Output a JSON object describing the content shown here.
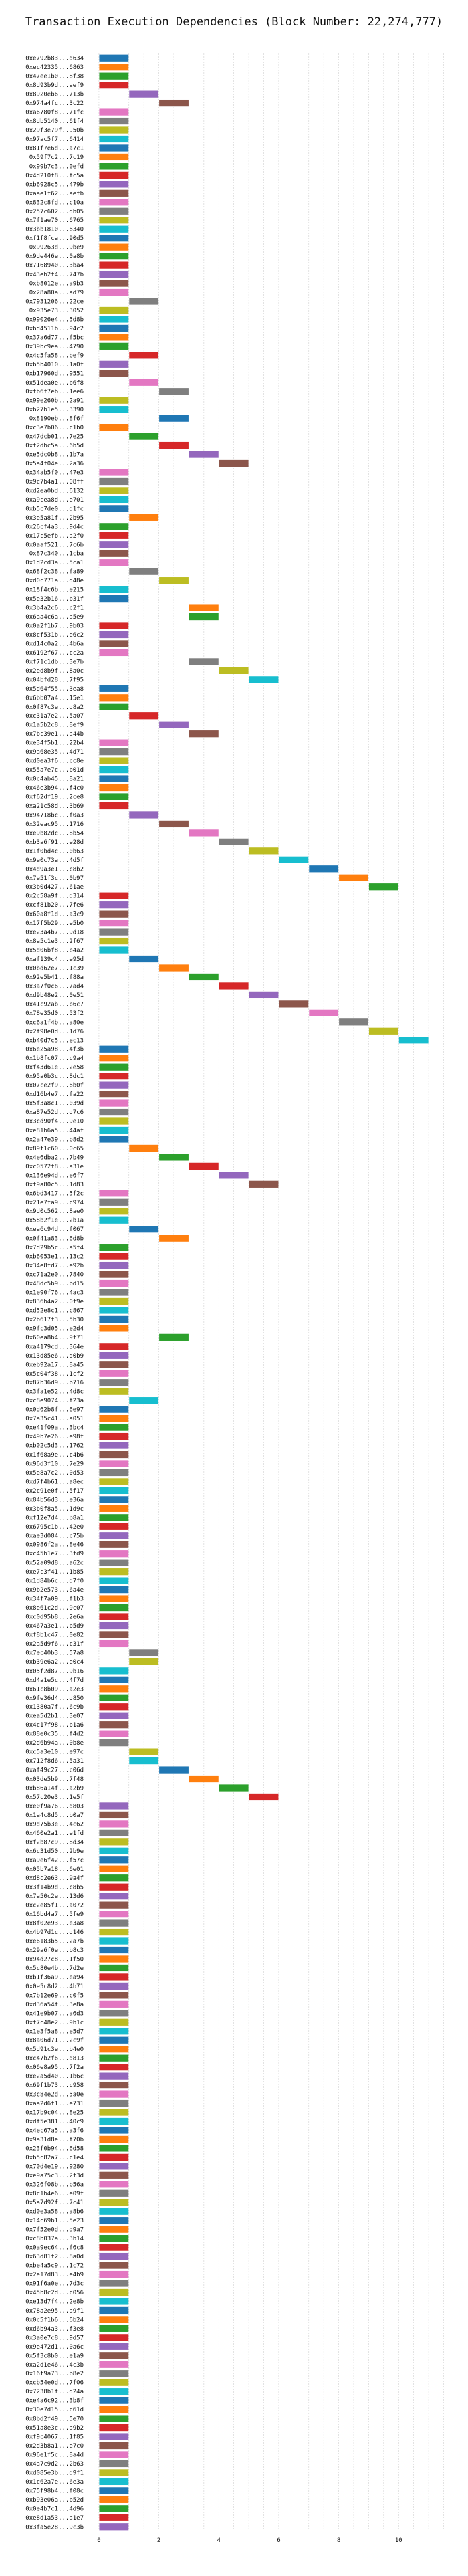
{
  "chart_data": {
    "type": "bar",
    "orientation": "horizontal",
    "title": "Transaction Execution Dependencies (Block Number: 22,274,777)",
    "xlabel": "",
    "ylabel": "",
    "xlim": [
      -0.4,
      11.6
    ],
    "xticks": [
      "0",
      "2",
      "4",
      "6",
      "8",
      "10"
    ],
    "xtick_values": [
      0,
      2,
      4,
      6,
      8,
      10
    ],
    "grid": true,
    "colors": [
      "#1f77b4",
      "#ff7f0e",
      "#2ca02c",
      "#d62728",
      "#9467bd",
      "#8c564b",
      "#e377c2",
      "#7f7f7f",
      "#bcbd22",
      "#17becf"
    ],
    "categories": [
      "0xe792b83...d634",
      "0xec42335...6863",
      "0x47ee1b0...8f38",
      "0x8d93b9d...aef9",
      "0x8920eb6...713b",
      "0x974a4fc...3c22",
      "0xa6780f8...71fc",
      "0x8db5140...61f4",
      "0x29f3e79f...50b",
      "0x97ac5f7...6414",
      "0x81f7e6d...a7c1",
      "0x59f7c2...7c19",
      "0x99b7c3...0efd",
      "0x4d210f8...fc5a",
      "0xb6928c5...479b",
      "0xaae1f62...aefb",
      "0x832c8fd...c10a",
      "0x257c602...db05",
      "0x7f1ae70...6765",
      "0x3bb1810...6340",
      "0xf1f8fca...90d5",
      "0x99263d...9be9",
      "0x9de446e...0a8b",
      "0x7168940...3ba4",
      "0x43eb2f4...747b",
      "0xb8012e...a9b3",
      "0x28a80a...ad79",
      "0x7931206...22ce",
      "0x935e73...3052",
      "0x99026e4...5d8b",
      "0xbd4511b...94c2",
      "0x37a6d77...f5bc",
      "0x39bc9ea...4790",
      "0x4c5fa58...bef9",
      "0xb5b4010...1a0f",
      "0xb17960d...9551",
      "0x51dea0e...b6f8",
      "0xfb6f7eb...1ee6",
      "0x99e260b...2a91",
      "0xb27b1e5...3390",
      "0x8190eb...8f6f",
      "0xc3e7b06...c1b0",
      "0x47dcb01...7e25",
      "0xf2dbc5a...6b5d",
      "0xe5dc0b8...1b7a",
      "0x5a4f04e...2a36",
      "0x34ab5f0...47e3",
      "0x9c7b4a1...08ff",
      "0xd2ea0bd...6132",
      "0xa9cea8d...e701",
      "0xb5c7de0...d1fc",
      "0x3e5a81f...2b95",
      "0x26cf4a3...9d4c",
      "0x17c5efb...a2f0",
      "0x0aaf521...7c6b",
      "0x87c340...1cba",
      "0x1d2cd3a...5ca1",
      "0x68f2c38...fa89",
      "0xd0c771a...d48e",
      "0x18f4c6b...e215",
      "0x5e32b16...b31f",
      "0x3b4a2c6...c2f1",
      "0x6aa4c6a...a5e9",
      "0x0a2f1b7...9b03",
      "0x8cf531b...e6c2",
      "0xd14c0a2...4b6a",
      "0x6192f67...cc2a",
      "0xf71c1db...3e7b",
      "0x2ed8b9f...8a0c",
      "0x04bfd28...7f95",
      "0x5d64f55...3ea8",
      "0x6bb07a4...15e1",
      "0x0f87c3e...d8a2",
      "0xc31a7e2...5a07",
      "0x1a5b2c8...8ef9",
      "0x7bc39e1...a44b",
      "0xe34f5b1...22b4",
      "0x9a68e35...4d71",
      "0xd0ea3f6...cc8e",
      "0x55a7e7c...b01d",
      "0x0c4ab45...8a21",
      "0x46e3b94...f4c0",
      "0xf62df19...2ce8",
      "0xa21c58d...3b69",
      "0x94718bc...f0a3",
      "0x32eac95...1716",
      "0xe9b82dc...8b54",
      "0xb3a6f91...e28d",
      "0x1f0bd4c...0b63",
      "0x9e0c73a...4d5f",
      "0x4d9a3e1...c8b2",
      "0x7e51f3c...0b97",
      "0x3b0d427...61ae",
      "0x2c58a9f...d314",
      "0xcf81b20...7fe6",
      "0x60a8f1d...a3c9",
      "0x17f5b29...e5b0",
      "0xe23a4b7...9d18",
      "0x8a5c1e3...2f67",
      "0x5d06bf8...b4a2",
      "0xaf139c4...e95d",
      "0x0bd62e7...1c39",
      "0x92e5b41...f88a",
      "0x3a7f0c6...7ad4",
      "0xd9b48e2...0e51",
      "0x41c92ab...b6c7",
      "0x78e35d0...53f2",
      "0xc6a1f4b...a80e",
      "0x2f98e0d...1d76",
      "0xb40d7c5...ec13",
      "0x6e25a98...4f3b",
      "0x1b8fc07...c9a4",
      "0xf43d61e...2e58",
      "0x95a0b3c...8dc1",
      "0x07ce2f9...6b0f",
      "0xd16b4e7...fa22",
      "0x5f3a8c1...039d",
      "0xa87e52d...d7c6",
      "0x3cd90f4...9e10",
      "0xe81b6a5...44af",
      "0x2a47e39...b8d2",
      "0x89f1c60...0c65",
      "0x4e6dba2...7b49",
      "0xc0572f8...a31e",
      "0x136e94d...e6f7",
      "0xf9a80c5...1d83",
      "0x6bd3417...5f2c",
      "0x21e7fa9...c974",
      "0x9d0c562...8ae0",
      "0x58b2f1e...2b1a",
      "0xea6c94d...f067",
      "0x0f41a83...6d8b",
      "0x7d29b5c...a5f4",
      "0xb6053e1...13c2",
      "0x34e8fd7...e92b",
      "0xc71a2e0...7840",
      "0x48dc5b9...bd15",
      "0x1e90f76...4ac3",
      "0x836b4a2...0f9e",
      "0xd52e8c1...c867",
      "0x2b617f3...5b30",
      "0x9fc3d05...e2d4",
      "0x60ea8b4...9f71",
      "0xa4179cd...364e",
      "0x13d85e6...d0b9",
      "0xeb92a17...8a45",
      "0x5c04f38...1cf2",
      "0x87b36d9...b716",
      "0x3fa1e52...4d8c",
      "0xc8e9074...f23a",
      "0x0d62b8f...6e97",
      "0x7a35c41...a051",
      "0xe41f09a...3bc4",
      "0x49b7e26...e98f",
      "0xb02c5d3...1762",
      "0x1f68a9e...c4b6",
      "0x96d3f10...7e29",
      "0x5e8a7c2...0d53",
      "0xd7f4b61...a8ec",
      "0x2c91e0f...5f17",
      "0x84b56d3...e36a",
      "0x3b0f8a5...1d9c",
      "0xf12e7d4...b8a1",
      "0x6795c1b...42e0",
      "0xae3d084...c75b",
      "0x0986f2a...8e46",
      "0xc45b1e7...3fd9",
      "0x52a09d8...a62c",
      "0xe7c3f41...1b85",
      "0x1d84b6c...d7f0",
      "0x9b2e573...6a4e",
      "0x34f7a09...f1b3",
      "0x8e61c2d...9c07",
      "0xc0d95b8...2e6a",
      "0x467a3e1...b5d9",
      "0xf8b1c47...0e82",
      "0x2a5d9f6...c31f",
      "0x7ec40b3...57a8",
      "0xb39e6a2...e0c4",
      "0x05f2d87...9b16",
      "0xd4a1e5c...4f7d",
      "0x61c8b09...a2e3",
      "0x9fe36d4...d850",
      "0x1380a7f...6c9b",
      "0xea5d2b1...3e07",
      "0x4c17f98...b1a6",
      "0x88e0c35...f4d2",
      "0x2d6b94a...0b8e",
      "0xc5a3e10...e97c",
      "0x712f8d6...5a31",
      "0xaf49c27...c06d",
      "0x03de5b9...7f48",
      "0xb86a14f...a2b9",
      "0x57c20e3...1e5f",
      "0xe0f9a76...d803",
      "0x1a4c8d5...b0a7",
      "0x9d75b3e...4c62",
      "0x460e2a1...e1fd",
      "0xf2b87c9...8d34",
      "0x6c31d50...2b9e",
      "0xa9e6f42...f57c",
      "0x05b7a18...6e01",
      "0xd8c2e63...9a4f",
      "0x3f14b9d...c8b5",
      "0x7a50c2e...13d6",
      "0xc2e85f1...a072",
      "0x16bd4a7...5fe9",
      "0x8f02e93...e3a8",
      "0x4b97d1c...d146",
      "0xe6183b5...2a7b",
      "0x29a6f0e...b8c3",
      "0x94d27c8...1f50",
      "0x5c80e4b...7d2e",
      "0xb1f36a9...ea94",
      "0x0e5c8d2...4b71",
      "0x7b12e69...c0f5",
      "0xd36a54f...3e8a",
      "0x41e9b07...a6d3",
      "0xf7c48e2...9b1c",
      "0x1e3f5a8...e5d7",
      "0x8a06d71...2c9f",
      "0x5d91c3e...b4e0",
      "0xc47b2f6...d813",
      "0x06e8a95...7f2a",
      "0xe2a5d40...1b6c",
      "0x69f1b73...c958",
      "0x3c84e2d...5a0e",
      "0xaa2d6f1...e731",
      "0x17b9c04...8e25",
      "0xdf5e381...40c9",
      "0x4ec67a5...a3f6",
      "0x9a31d8e...f70b",
      "0x23f0b94...6d58",
      "0xb5c82a7...c1e4",
      "0x70d4e19...9280",
      "0xe9a75c3...2f3d",
      "0x326f08b...b56a",
      "0x8c1b4e6...e09f",
      "0x5a7d92f...7c41",
      "0xd0e3a58...a8b6",
      "0x14c69b1...5e23",
      "0x7f52e0d...d9a7",
      "0xc8b037a...3b14",
      "0x0a9ec64...f6c8",
      "0x63d81f2...8a0d",
      "0xbe4a5c9...1c72",
      "0x2e17d83...e4b9",
      "0x91f6a0e...7d3c",
      "0x45b8c2d...c056",
      "0xe13d7f4...2e8b",
      "0x78a2e95...a9f1",
      "0x0c5f1b6...6b24",
      "0xd6b94a3...f3e8",
      "0x3a0e7c8...9d57",
      "0x9e472d1...0a6c",
      "0x5f3c8b0...e1a9",
      "0xa2d1e46...4c3b",
      "0x16f9a73...b8e2",
      "0xcb54e0d...7f06",
      "0x7238b1f...d24a",
      "0xe4a6c92...3b8f",
      "0x30e7d15...c61d",
      "0x8bd2f49...5e70",
      "0x51a8e3c...a9b2",
      "0xf9c4067...1f85",
      "0x2d3b8a1...e7c0",
      "0x96e1f5c...8a4d",
      "0x4a7c9d2...2b63",
      "0xd085e3b...d9f1",
      "0x1c62a7e...6e3a",
      "0x75f98b4...f08c",
      "0xb93e06a...b52d",
      "0x0e4b7c1...4d96",
      "0xe8d1a53...a1e7",
      "0x3fa5e28...9c3b"
    ],
    "starts": [
      0,
      0,
      0,
      0,
      1,
      2,
      0,
      0,
      0,
      0,
      0,
      0,
      0,
      0,
      0,
      0,
      0,
      0,
      0,
      0,
      0,
      0,
      0,
      0,
      0,
      0,
      0,
      1,
      0,
      0,
      0,
      0,
      0,
      1,
      0,
      0,
      1,
      2,
      0,
      0,
      2,
      0,
      1,
      2,
      3,
      4,
      0,
      0,
      0,
      0,
      0,
      1,
      0,
      0,
      0,
      0,
      0,
      1,
      2,
      0,
      0,
      3,
      3,
      0,
      0,
      0,
      0,
      3,
      4,
      5,
      0,
      0,
      0,
      1,
      2,
      3,
      0,
      0,
      0,
      0,
      0,
      0,
      0,
      0,
      1,
      2,
      3,
      4,
      5,
      6,
      7,
      8,
      9,
      0,
      0,
      0,
      0,
      0,
      0,
      0,
      1,
      2,
      3,
      4,
      5,
      6,
      7,
      8,
      9,
      10,
      0,
      0,
      0,
      0,
      0,
      0,
      0,
      0,
      0,
      0,
      0,
      1,
      2,
      3,
      4,
      5,
      0,
      0,
      0,
      0,
      1,
      2,
      0,
      0,
      0,
      0,
      0,
      0,
      0,
      0,
      0,
      0,
      2,
      0,
      0,
      0,
      0,
      0,
      0,
      1,
      0,
      0,
      0,
      0,
      0,
      0,
      0,
      0,
      0,
      0,
      0,
      0,
      0,
      0,
      0,
      0,
      0,
      0,
      0,
      0,
      0,
      0,
      0,
      0,
      0,
      0,
      0,
      1,
      1,
      0,
      0,
      0,
      0,
      0,
      0,
      0,
      0,
      0,
      1,
      1,
      2,
      3,
      4,
      5,
      0,
      0,
      0,
      0,
      0,
      0,
      0,
      0,
      0,
      0,
      0,
      0,
      0,
      0,
      0,
      0,
      0,
      0,
      0,
      0,
      0,
      0,
      0,
      0,
      0,
      0,
      0,
      0,
      0,
      0,
      0,
      0,
      0,
      0,
      0,
      0,
      0,
      0,
      0,
      0,
      0,
      0,
      0,
      0,
      0,
      0,
      0,
      0,
      0,
      0,
      0,
      0,
      0,
      0,
      0,
      0,
      0,
      0,
      0,
      0,
      0,
      0,
      0,
      0,
      0,
      0,
      0,
      0,
      0,
      0,
      0,
      0,
      0,
      0,
      0,
      0,
      0,
      0,
      0,
      0,
      0,
      0,
      0,
      0,
      0,
      0,
      0,
      0,
      0,
      0,
      0,
      0,
      0,
      0,
      0,
      0
    ]
  }
}
